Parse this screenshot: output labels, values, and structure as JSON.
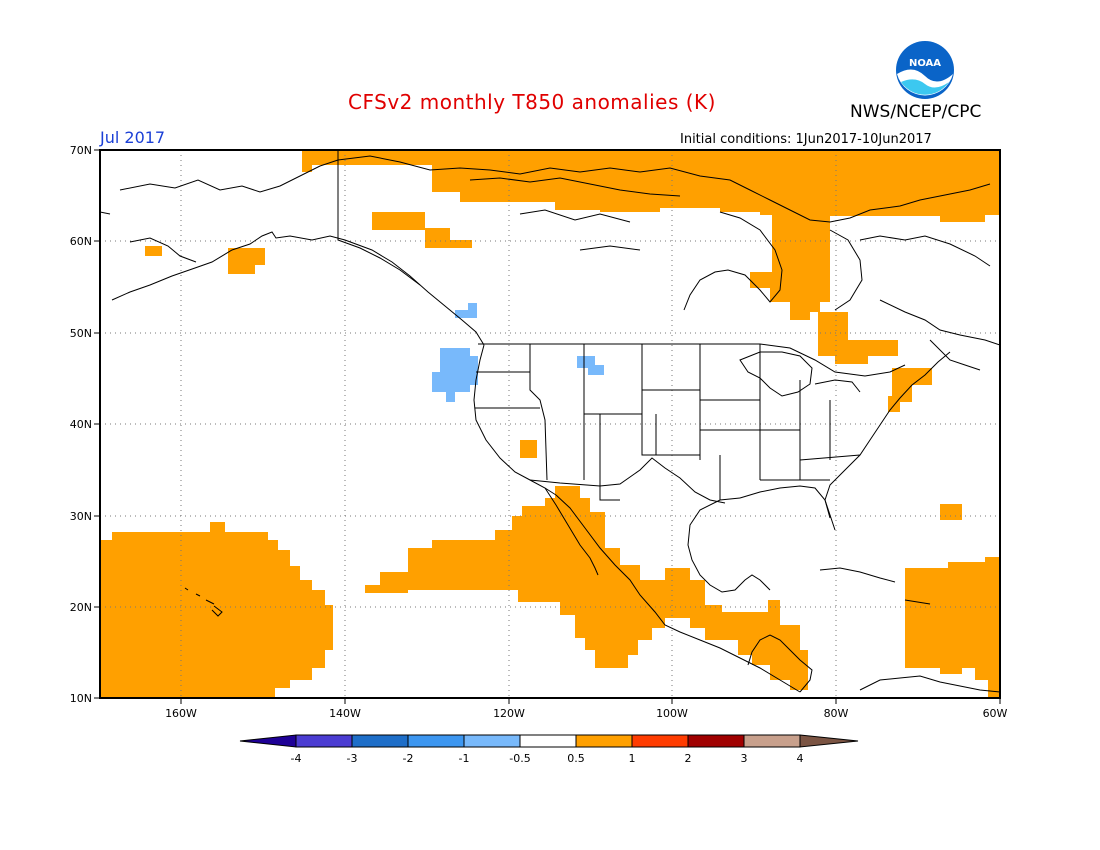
{
  "header": {
    "title": "CFSv2 monthly T850 anomalies (K)",
    "date": "Jul 2017",
    "initial_conditions": "Initial conditions: 1Jun2017-10Jun2017",
    "agency": "NWS/NCEP/CPC",
    "logo_text": "NOAA"
  },
  "map": {
    "lon_range": [
      -172,
      -60
    ],
    "lat_range": [
      10,
      70
    ],
    "lat_labels": [
      "70N",
      "60N",
      "50N",
      "40N",
      "30N",
      "20N",
      "10N"
    ],
    "lon_labels": [
      "160W",
      "140W",
      "120W",
      "100W",
      "80W",
      "60W"
    ],
    "grid": "dotted",
    "anomaly_regions": [
      {
        "label": "warm",
        "color": "#ffa000",
        "desc": "Arctic Canada"
      },
      {
        "label": "warm",
        "color": "#ffa000",
        "desc": "Hudson Bay / Quebec"
      },
      {
        "label": "warm",
        "color": "#ffa000",
        "desc": "Subtropical Pacific / Hawaii"
      },
      {
        "label": "warm",
        "color": "#ffa000",
        "desc": "Mexico / Central America"
      },
      {
        "label": "warm",
        "color": "#ffa000",
        "desc": "Caribbean / Atlantic"
      },
      {
        "label": "cool",
        "color": "#78b9fb",
        "desc": "Pacific Northwest coast"
      }
    ]
  },
  "colorbar": {
    "labels": [
      "-4",
      "-3",
      "-2",
      "-1",
      "-0.5",
      "0.5",
      "1",
      "2",
      "3",
      "4"
    ],
    "colors": [
      "#1e0096",
      "#4b3cd2",
      "#1e6ec8",
      "#3c96f0",
      "#78b9fb",
      "#ffffff",
      "#ffa000",
      "#ff3c00",
      "#a00000",
      "#c8a08c",
      "#7b5443"
    ]
  }
}
